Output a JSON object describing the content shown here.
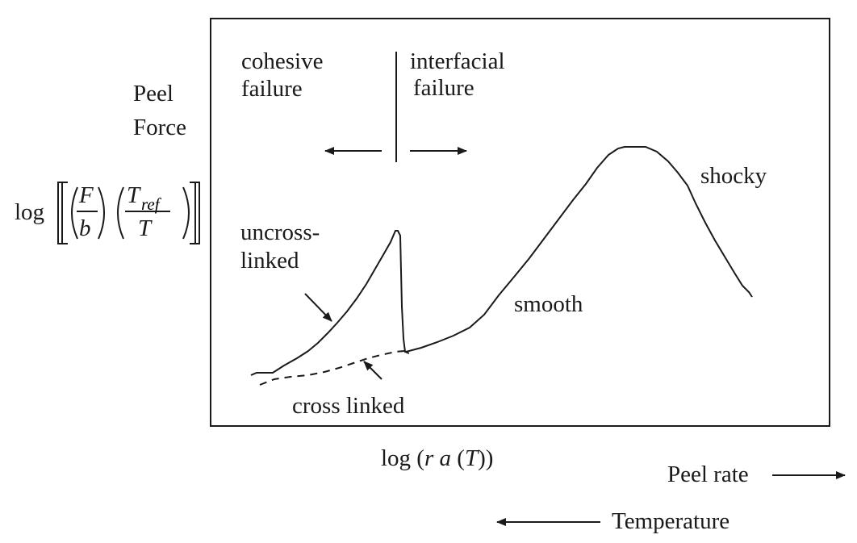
{
  "y_axis": {
    "line1": "Peel",
    "line2": "Force",
    "formula": {
      "prefix": "log",
      "F": "F",
      "b": "b",
      "T": "T",
      "ref": "ref",
      "T_den": "T"
    }
  },
  "x_axis": {
    "label_log": "log (",
    "label_r": "r",
    "label_a": "a",
    "label_open": "(",
    "label_T": "T",
    "label_close": "))"
  },
  "peel_rate_label": "Peel rate",
  "temperature_label": "Temperature",
  "regions": {
    "cohesive_1": "cohesive",
    "cohesive_2": "failure",
    "interfacial_1": "interfacial",
    "interfacial_2": "failure"
  },
  "curve_labels": {
    "uncross_1": "uncross-",
    "uncross_2": "linked",
    "cross_linked": "cross linked",
    "smooth": "smooth",
    "shocky": "shocky"
  }
}
